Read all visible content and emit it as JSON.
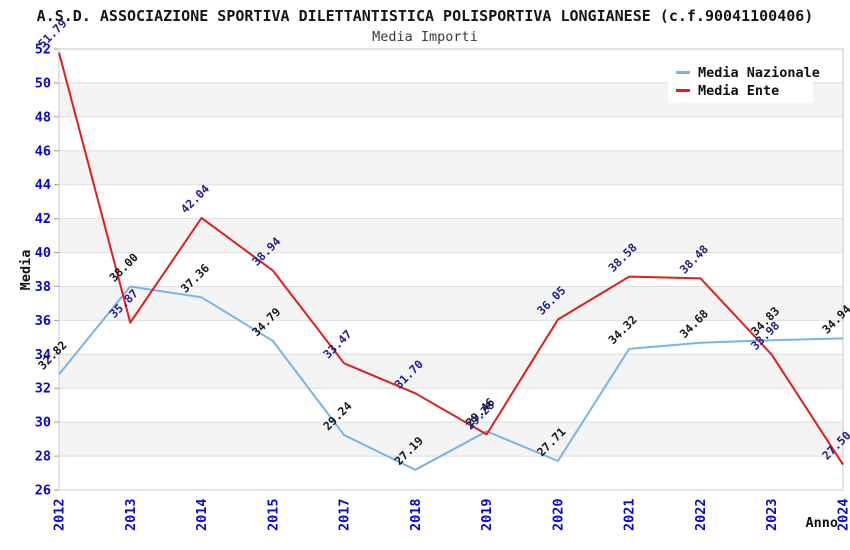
{
  "header": {
    "title": "A.S.D. ASSOCIAZIONE SPORTIVA DILETTANTISTICA POLISPORTIVA LONGIANESE (c.f.90041100406)",
    "subtitle": "Media Importi"
  },
  "legend": {
    "position": "top-right",
    "items": [
      {
        "label": "Media Nazionale",
        "color": "#78b4e6"
      },
      {
        "label": "Media Ente",
        "color": "#dd1f1f"
      }
    ]
  },
  "chart_data": {
    "type": "line",
    "title": "Media Importi",
    "xlabel": "Anno",
    "ylabel": "Media",
    "categories": [
      "2012",
      "2013",
      "2014",
      "2015",
      "2017",
      "2018",
      "2019",
      "2020",
      "2021",
      "2022",
      "2023",
      "2024"
    ],
    "series": [
      {
        "name": "Media Nazionale",
        "color": "#78b4e6",
        "label_color": "#161616",
        "values": [
          32.82,
          38.0,
          37.36,
          34.79,
          29.24,
          27.19,
          29.46,
          27.71,
          34.32,
          34.68,
          34.83,
          34.94
        ]
      },
      {
        "name": "Media Ente",
        "color": "#dd1f1f",
        "label_color": "#1f1f8c",
        "values": [
          51.79,
          35.87,
          42.04,
          38.94,
          33.47,
          31.7,
          29.28,
          36.05,
          38.58,
          38.48,
          33.98,
          27.5
        ]
      }
    ],
    "ylim": [
      26,
      52
    ],
    "y_ticks": [
      26,
      28,
      30,
      32,
      34,
      36,
      38,
      40,
      42,
      44,
      46,
      48,
      50,
      52
    ],
    "grid": true,
    "band_fill": "#f4f4f4",
    "grid_color": "#dedede",
    "border_color": "#c9c9c9",
    "tick_text_color": "#0808cc",
    "value_label_decimals": 2,
    "legend_position": "top-right"
  }
}
